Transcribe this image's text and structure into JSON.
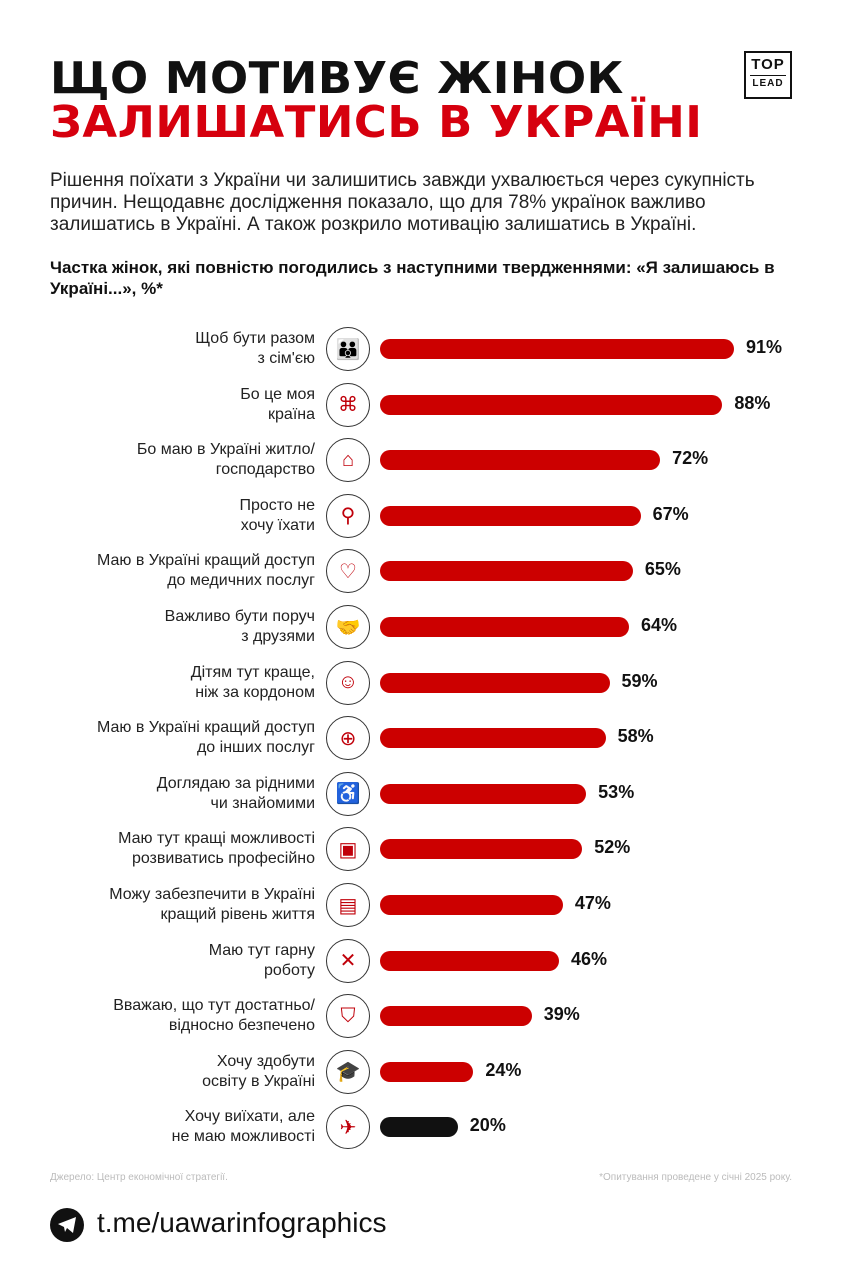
{
  "title_line1": "ЩО МОТИВУЄ ЖІНОК",
  "title_line2": "ЗАЛИШАТИСЬ В УКРАЇНІ",
  "logo": {
    "top": "TOP",
    "bottom": "LEAD"
  },
  "intro": "Рішення поїхати з України чи залишитись завжди ухвалюється через сукупність причин. Нещодавнє дослідження показало, що для 78% українок важливо залишатись в Україні. А також розкрило мотивацію залишатись в Україні.",
  "colors": {
    "accent": "#cc0000",
    "last_bar": "#111111",
    "title_red": "#d6000e"
  },
  "chart_data": {
    "type": "bar",
    "orientation": "horizontal",
    "title": "Частка жінок, які повністю погодились з наступними твердженнями: «Я залишаюсь в Україні...», %*",
    "xlim": [
      0,
      100
    ],
    "grid": false,
    "categories": [
      [
        "Щоб бути разом",
        "з сім'єю"
      ],
      [
        "Бо це моя",
        "країна"
      ],
      [
        "Бо маю в Україні житло/",
        "господарство"
      ],
      [
        "Просто не",
        "хочу їхати"
      ],
      [
        "Маю в Україні кращий доступ",
        "до медичних послуг"
      ],
      [
        "Важливо бути поруч",
        "з друзями"
      ],
      [
        "Дітям тут краще,",
        "ніж за кордоном"
      ],
      [
        "Маю в Україні кращий доступ",
        "до інших  послуг"
      ],
      [
        "Доглядаю за рідними",
        "чи знайомими"
      ],
      [
        "Маю тут кращі можливості",
        "розвиватись професійно"
      ],
      [
        "Можу забезпечити в Україні",
        "кращий рівень життя"
      ],
      [
        "Маю тут гарну",
        "роботу"
      ],
      [
        "Вважаю, що тут достатньо/",
        "відносно безпечено"
      ],
      [
        "Хочу здобути",
        "освіту в Україні"
      ],
      [
        "Хочу виїхати, але",
        "не маю можливості"
      ]
    ],
    "values": [
      91,
      88,
      72,
      67,
      65,
      64,
      59,
      58,
      53,
      52,
      47,
      46,
      39,
      24,
      20
    ],
    "labels": [
      "91%",
      "88%",
      "72%",
      "67%",
      "65%",
      "64%",
      "59%",
      "58%",
      "53%",
      "52%",
      "47%",
      "46%",
      "39%",
      "24%",
      "20%"
    ],
    "icons": [
      "family-icon",
      "ukraine-map-icon",
      "house-icon",
      "location-pin-icon",
      "heart-pulse-icon",
      "handshake-icon",
      "child-balloon-icon",
      "globe-icon",
      "wheelchair-icon",
      "briefcase-icon",
      "wallet-icon",
      "tools-icon",
      "shield-check-icon",
      "graduation-cap-icon",
      "no-plane-icon"
    ]
  },
  "footer": {
    "source": "Джерело: Центр економічної стратегії.",
    "note": "*Опитування проведене у січні 2025 року.",
    "channel": "t.me/uawarinfographics"
  }
}
